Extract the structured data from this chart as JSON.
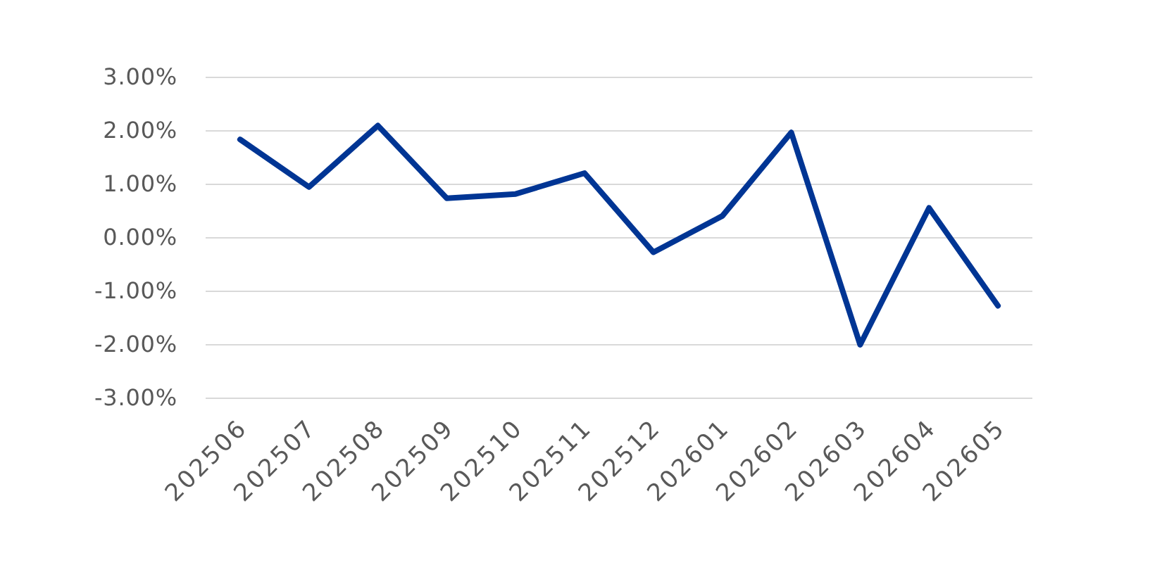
{
  "chart_data": {
    "type": "line",
    "categories": [
      "202506",
      "202507",
      "202508",
      "202509",
      "202510",
      "202511",
      "202512",
      "202601",
      "202602",
      "202603",
      "202604",
      "202605"
    ],
    "series": [
      {
        "color": "#003594",
        "values": [
          1.84,
          0.95,
          2.1,
          0.74,
          0.82,
          1.21,
          -0.27,
          0.41,
          1.97,
          -2.0,
          0.56,
          -1.27
        ]
      }
    ],
    "ylim": [
      -3,
      3
    ],
    "yticks": [
      {
        "value": -3,
        "label": "-3.00%"
      },
      {
        "value": -2,
        "label": "-2.00%"
      },
      {
        "value": -1,
        "label": "-1.00%"
      },
      {
        "value": 0,
        "label": "0.00%"
      },
      {
        "value": 1,
        "label": "1.00%"
      },
      {
        "value": 2,
        "label": "2.00%"
      },
      {
        "value": 3,
        "label": "3.00%"
      }
    ],
    "grid": "y",
    "marker": "none",
    "line_style": "solid"
  }
}
